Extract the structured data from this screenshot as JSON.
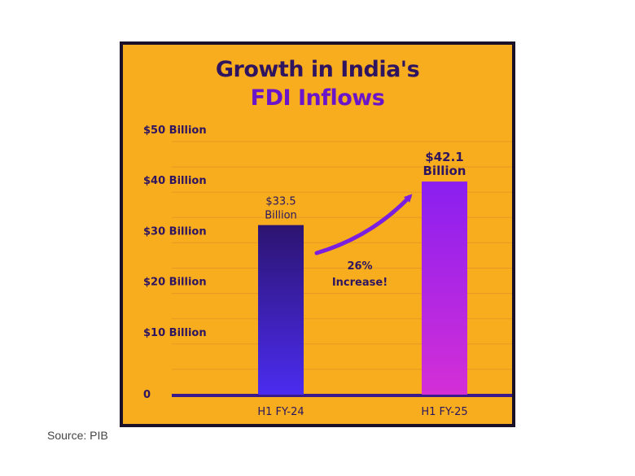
{
  "chart_data": {
    "type": "bar",
    "title_line1": "Growth in India's",
    "title_line2": "FDI Inflows",
    "categories": [
      "H1 FY-24",
      "H1 FY-25"
    ],
    "values": [
      33.5,
      42.1
    ],
    "value_labels": [
      [
        "$33.5",
        "Billion"
      ],
      [
        "$42.1",
        "Billion"
      ]
    ],
    "ylim": [
      0,
      50
    ],
    "yticks": [
      {
        "value": 0,
        "label": "0"
      },
      {
        "value": 10,
        "label": "$10 Billion"
      },
      {
        "value": 20,
        "label": "$20 Billion"
      },
      {
        "value": 30,
        "label": "$30 Billion"
      },
      {
        "value": 40,
        "label": "$40 Billion"
      },
      {
        "value": 50,
        "label": "$50 Billion"
      }
    ],
    "grid": true,
    "annotation": [
      "26%",
      "Increase!"
    ],
    "colors": {
      "background": "#f7ad1e",
      "border": "#1a1128",
      "title": "#2f1460",
      "title_accent": "#6a15c9",
      "bar1_top": "#2c1470",
      "bar1_bottom": "#4b2cf0",
      "bar2_top": "#8a1ff0",
      "bar2_bottom": "#d42fd6",
      "arrow": "#7a1fe0",
      "gridline": "#d98a2a"
    }
  },
  "source": "Source: PIB"
}
